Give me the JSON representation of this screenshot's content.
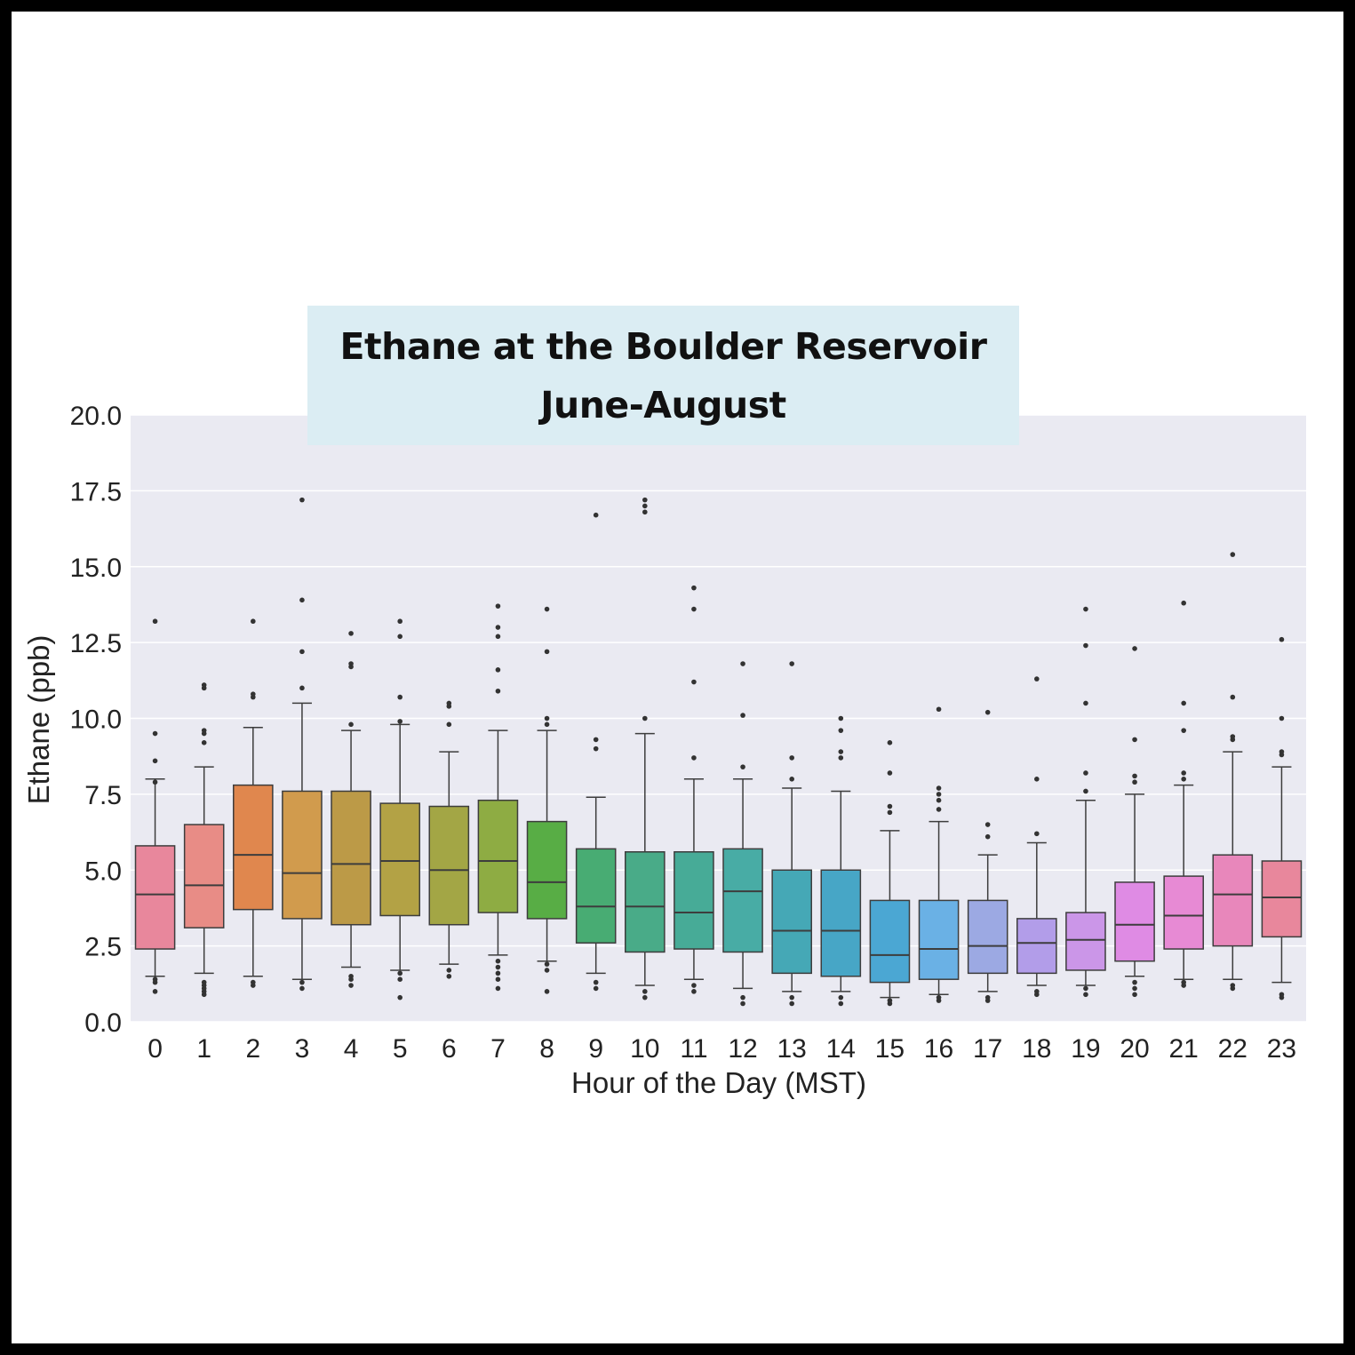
{
  "chart_data": {
    "type": "box",
    "title": "Ethane at the Boulder Reservoir",
    "subtitle": "June-August",
    "xlabel": "Hour of the Day (MST)",
    "ylabel": "Ethane (ppb)",
    "ylim": [
      0,
      20
    ],
    "yticks": [
      "0.0",
      "2.5",
      "5.0",
      "7.5",
      "10.0",
      "12.5",
      "15.0",
      "17.5",
      "20.0"
    ],
    "grid": true,
    "categories": [
      "0",
      "1",
      "2",
      "3",
      "4",
      "5",
      "6",
      "7",
      "8",
      "9",
      "10",
      "11",
      "12",
      "13",
      "14",
      "15",
      "16",
      "17",
      "18",
      "19",
      "20",
      "21",
      "22",
      "23"
    ],
    "boxes": [
      {
        "q1": 2.4,
        "median": 4.2,
        "q3": 5.8,
        "whisker_low": 1.5,
        "whisker_high": 8.0,
        "outliers": [
          1.0,
          1.3,
          1.4,
          7.9,
          8.6,
          9.5,
          13.2
        ]
      },
      {
        "q1": 3.1,
        "median": 4.5,
        "q3": 6.5,
        "whisker_low": 1.6,
        "whisker_high": 8.4,
        "outliers": [
          0.9,
          1.0,
          1.1,
          1.2,
          1.3,
          9.2,
          9.5,
          9.6,
          11.0,
          11.1
        ]
      },
      {
        "q1": 3.7,
        "median": 5.5,
        "q3": 7.8,
        "whisker_low": 1.5,
        "whisker_high": 9.7,
        "outliers": [
          1.2,
          1.3,
          10.7,
          10.8,
          13.2
        ]
      },
      {
        "q1": 3.4,
        "median": 4.9,
        "q3": 7.6,
        "whisker_low": 1.4,
        "whisker_high": 10.5,
        "outliers": [
          1.1,
          1.3,
          11.0,
          12.2,
          13.9,
          17.2
        ]
      },
      {
        "q1": 3.2,
        "median": 5.2,
        "q3": 7.6,
        "whisker_low": 1.8,
        "whisker_high": 9.6,
        "outliers": [
          1.2,
          1.4,
          1.5,
          9.8,
          11.7,
          11.8,
          12.8
        ]
      },
      {
        "q1": 3.5,
        "median": 5.3,
        "q3": 7.2,
        "whisker_low": 1.7,
        "whisker_high": 9.8,
        "outliers": [
          0.8,
          1.4,
          1.6,
          9.9,
          10.7,
          12.7,
          13.2
        ]
      },
      {
        "q1": 3.2,
        "median": 5.0,
        "q3": 7.1,
        "whisker_low": 1.9,
        "whisker_high": 8.9,
        "outliers": [
          1.5,
          1.7,
          9.8,
          10.4,
          10.5
        ]
      },
      {
        "q1": 3.6,
        "median": 5.3,
        "q3": 7.3,
        "whisker_low": 2.2,
        "whisker_high": 9.6,
        "outliers": [
          1.1,
          1.4,
          1.6,
          1.8,
          2.0,
          10.9,
          11.6,
          12.7,
          13.0,
          13.7
        ]
      },
      {
        "q1": 3.4,
        "median": 4.6,
        "q3": 6.6,
        "whisker_low": 2.0,
        "whisker_high": 9.6,
        "outliers": [
          1.0,
          1.7,
          1.9,
          9.8,
          10.0,
          12.2,
          13.6
        ]
      },
      {
        "q1": 2.6,
        "median": 3.8,
        "q3": 5.7,
        "whisker_low": 1.6,
        "whisker_high": 7.4,
        "outliers": [
          1.1,
          1.3,
          9.0,
          9.3,
          16.7
        ]
      },
      {
        "q1": 2.3,
        "median": 3.8,
        "q3": 5.6,
        "whisker_low": 1.2,
        "whisker_high": 9.5,
        "outliers": [
          0.8,
          1.0,
          10.0,
          16.8,
          17.0,
          17.2
        ]
      },
      {
        "q1": 2.4,
        "median": 3.6,
        "q3": 5.6,
        "whisker_low": 1.4,
        "whisker_high": 8.0,
        "outliers": [
          1.0,
          1.2,
          8.7,
          11.2,
          13.6,
          14.3
        ]
      },
      {
        "q1": 2.3,
        "median": 4.3,
        "q3": 5.7,
        "whisker_low": 1.1,
        "whisker_high": 8.0,
        "outliers": [
          0.6,
          0.8,
          8.4,
          10.1,
          11.8
        ]
      },
      {
        "q1": 1.6,
        "median": 3.0,
        "q3": 5.0,
        "whisker_low": 1.0,
        "whisker_high": 7.7,
        "outliers": [
          0.6,
          0.8,
          8.0,
          8.7,
          11.8
        ]
      },
      {
        "q1": 1.5,
        "median": 3.0,
        "q3": 5.0,
        "whisker_low": 1.0,
        "whisker_high": 7.6,
        "outliers": [
          0.6,
          0.8,
          8.7,
          8.9,
          9.6,
          10.0
        ]
      },
      {
        "q1": 1.3,
        "median": 2.2,
        "q3": 4.0,
        "whisker_low": 0.8,
        "whisker_high": 6.3,
        "outliers": [
          0.6,
          0.7,
          6.9,
          7.1,
          8.2,
          9.2
        ]
      },
      {
        "q1": 1.4,
        "median": 2.4,
        "q3": 4.0,
        "whisker_low": 0.9,
        "whisker_high": 6.6,
        "outliers": [
          0.7,
          0.8,
          7.0,
          7.3,
          7.5,
          7.7,
          10.3
        ]
      },
      {
        "q1": 1.6,
        "median": 2.5,
        "q3": 4.0,
        "whisker_low": 1.0,
        "whisker_high": 5.5,
        "outliers": [
          0.7,
          0.8,
          6.1,
          6.5,
          10.2
        ]
      },
      {
        "q1": 1.6,
        "median": 2.6,
        "q3": 3.4,
        "whisker_low": 1.2,
        "whisker_high": 5.9,
        "outliers": [
          0.9,
          1.0,
          6.2,
          8.0,
          11.3
        ]
      },
      {
        "q1": 1.7,
        "median": 2.7,
        "q3": 3.6,
        "whisker_low": 1.2,
        "whisker_high": 7.3,
        "outliers": [
          0.9,
          1.1,
          7.6,
          8.2,
          10.5,
          12.4,
          13.6
        ]
      },
      {
        "q1": 2.0,
        "median": 3.2,
        "q3": 4.6,
        "whisker_low": 1.5,
        "whisker_high": 7.5,
        "outliers": [
          0.9,
          1.1,
          1.3,
          7.9,
          8.1,
          9.3,
          12.3
        ]
      },
      {
        "q1": 2.4,
        "median": 3.5,
        "q3": 4.8,
        "whisker_low": 1.4,
        "whisker_high": 7.8,
        "outliers": [
          1.2,
          1.3,
          8.0,
          8.2,
          9.6,
          10.5,
          13.8
        ]
      },
      {
        "q1": 2.5,
        "median": 4.2,
        "q3": 5.5,
        "whisker_low": 1.4,
        "whisker_high": 8.9,
        "outliers": [
          1.1,
          1.2,
          9.3,
          9.4,
          10.7,
          15.4
        ]
      },
      {
        "q1": 2.8,
        "median": 4.1,
        "q3": 5.3,
        "whisker_low": 1.3,
        "whisker_high": 8.4,
        "outliers": [
          0.8,
          0.9,
          8.8,
          8.9,
          10.0,
          12.6
        ]
      }
    ],
    "colors": [
      "#e8879c",
      "#e88c86",
      "#e0874e",
      "#d19b4d",
      "#bc9a47",
      "#b3a245",
      "#a3a645",
      "#8eac43",
      "#58ad45",
      "#48ac73",
      "#49ab88",
      "#47ab97",
      "#48aca5",
      "#45a8b6",
      "#47a6c6",
      "#4ba7d3",
      "#6ab1e5",
      "#9ca9e3",
      "#b29de9",
      "#cb96e8",
      "#df8be4",
      "#e78ad4",
      "#e887bb",
      "#e8879c"
    ],
    "panel_background": "#eaeaf2",
    "title_background": "#dbedf3"
  }
}
